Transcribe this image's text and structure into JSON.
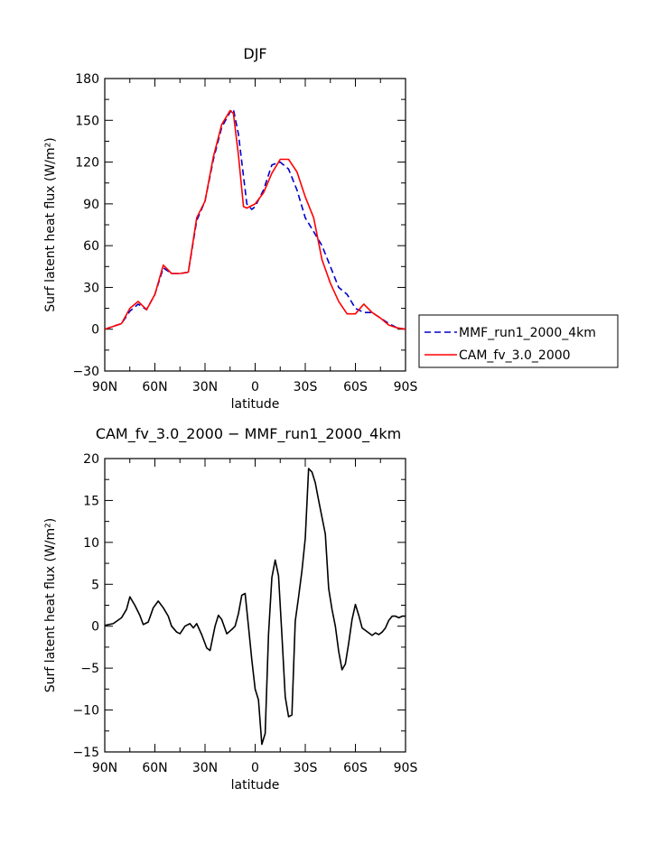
{
  "chart_data": [
    {
      "type": "line",
      "title": "DJF",
      "xlabel": "latitude",
      "ylabel": "Surf latent heat flux (W/m²)",
      "xlim": [
        90,
        -90
      ],
      "ylim": [
        -30,
        180
      ],
      "x_ticks": [
        90,
        60,
        30,
        0,
        -30,
        -60,
        -90
      ],
      "x_tick_labels": [
        "90N",
        "60N",
        "30N",
        "0",
        "30S",
        "60S",
        "90S"
      ],
      "y_ticks": [
        -30,
        0,
        30,
        60,
        90,
        120,
        150,
        180
      ],
      "y_tick_labels": [
        "−30",
        "0",
        "30",
        "60",
        "90",
        "120",
        "150",
        "180"
      ],
      "grid": false,
      "legend_position": "right",
      "series": [
        {
          "name": "MMF_run1_2000_4km",
          "color": "#0000cc",
          "dash": "dashed",
          "x": [
            90,
            85,
            80,
            75,
            70,
            65,
            60,
            55,
            50,
            45,
            40,
            35,
            30,
            25,
            20,
            15,
            13,
            10,
            5,
            2,
            0,
            -5,
            -10,
            -15,
            -20,
            -25,
            -30,
            -35,
            -40,
            -45,
            -50,
            -55,
            -60,
            -65,
            -70,
            -75,
            -80,
            -85,
            -90
          ],
          "y": [
            0,
            2,
            4,
            13,
            18,
            14,
            25,
            44,
            40,
            40,
            41,
            78,
            92,
            122,
            145,
            156,
            158,
            140,
            90,
            86,
            88,
            100,
            118,
            120,
            115,
            100,
            80,
            70,
            60,
            45,
            30,
            25,
            15,
            12,
            12,
            8,
            4,
            1,
            0
          ]
        },
        {
          "name": "CAM_fv_3.0_2000",
          "color": "#ff0000",
          "dash": "solid",
          "x": [
            90,
            85,
            80,
            75,
            70,
            65,
            60,
            55,
            50,
            45,
            40,
            35,
            30,
            25,
            20,
            15,
            13,
            10,
            7,
            5,
            0,
            -5,
            -10,
            -15,
            -20,
            -25,
            -30,
            -35,
            -40,
            -45,
            -50,
            -55,
            -60,
            -65,
            -70,
            -75,
            -80,
            -85,
            -90
          ],
          "y": [
            0,
            2,
            4,
            15,
            20,
            14,
            25,
            46,
            40,
            40,
            41,
            80,
            92,
            124,
            147,
            157,
            155,
            125,
            88,
            87,
            90,
            98,
            112,
            122,
            122,
            113,
            95,
            80,
            50,
            33,
            20,
            11,
            11,
            18,
            12,
            8,
            3,
            1,
            0
          ]
        }
      ]
    },
    {
      "type": "line",
      "title": "CAM_fv_3.0_2000 − MMF_run1_2000_4km",
      "xlabel": "latitude",
      "ylabel": "Surf latent heat flux (W/m²)",
      "xlim": [
        90,
        -90
      ],
      "ylim": [
        -15,
        20
      ],
      "x_ticks": [
        90,
        60,
        30,
        0,
        -30,
        -60,
        -90
      ],
      "x_tick_labels": [
        "90N",
        "60N",
        "30N",
        "0",
        "30S",
        "60S",
        "90S"
      ],
      "y_ticks": [
        -15,
        -10,
        -5,
        0,
        5,
        10,
        15,
        20
      ],
      "y_tick_labels": [
        "−15",
        "−10",
        "−5",
        "0",
        "5",
        "10",
        "15",
        "20"
      ],
      "grid": false,
      "series": [
        {
          "color": "#000000",
          "dash": "solid",
          "x": [
            90,
            85,
            80,
            77,
            75,
            72,
            69,
            67,
            64,
            61,
            58,
            55,
            52,
            50,
            47,
            45,
            42,
            39,
            37,
            35,
            32,
            29,
            27,
            24,
            22,
            20,
            17,
            14,
            12,
            10,
            8,
            6,
            4,
            2,
            0,
            -2,
            -4,
            -6,
            -8,
            -10,
            -12,
            -14,
            -16,
            -18,
            -20,
            -22,
            -24,
            -26,
            -28,
            -30,
            -32,
            -34,
            -36,
            -38,
            -40,
            -42,
            -44,
            -46,
            -48,
            -50,
            -52,
            -54,
            -56,
            -58,
            -60,
            -62,
            -64,
            -66,
            -68,
            -70,
            -72,
            -74,
            -76,
            -78,
            -80,
            -82,
            -84,
            -86,
            -88,
            -90
          ],
          "y": [
            0.1,
            0.3,
            1,
            2,
            3.5,
            2.5,
            1.3,
            0.2,
            0.5,
            2.2,
            3,
            2.2,
            1.2,
            0,
            -0.7,
            -0.9,
            0,
            0.3,
            -0.2,
            0.3,
            -1,
            -2.6,
            -2.9,
            0,
            1.3,
            0.8,
            -0.9,
            -0.4,
            0,
            1.5,
            3.7,
            3.9,
            0,
            -4,
            -7.5,
            -8.8,
            -14.1,
            -12.8,
            -1,
            5.8,
            7.9,
            6,
            -1,
            -8.4,
            -10.8,
            -10.6,
            0.6,
            3.5,
            6.6,
            10.5,
            18.8,
            18.4,
            17.1,
            15,
            13,
            11,
            4.5,
            2,
            0,
            -3,
            -5.2,
            -4.5,
            -2,
            0.8,
            2.6,
            1.3,
            -0.2,
            -0.5,
            -0.8,
            -1.1,
            -0.8,
            -1,
            -0.7,
            -0.2,
            0.7,
            1.2,
            1.2,
            1,
            1.2,
            1.2
          ]
        }
      ]
    }
  ]
}
